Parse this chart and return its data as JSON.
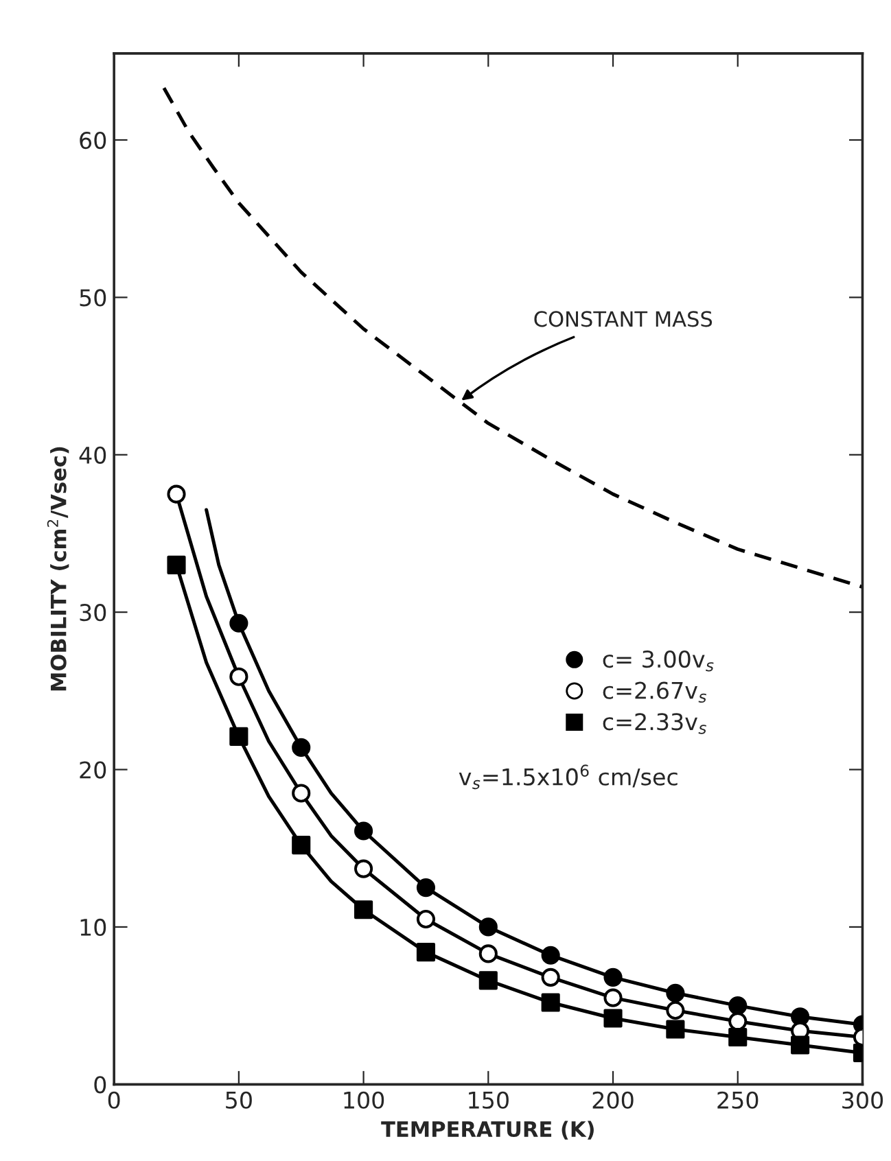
{
  "chart_data": {
    "type": "line",
    "xlabel": "TEMPERATURE (K)",
    "ylabel": "MOBILITY (cm$^{2}$/Vsec)",
    "xlim": [
      0,
      300
    ],
    "ylim": [
      0,
      65.5
    ],
    "xticks": [
      0,
      50,
      100,
      150,
      200,
      250,
      300
    ],
    "yticks": [
      0,
      10,
      20,
      30,
      40,
      50,
      60
    ],
    "grid": false,
    "legend": "right",
    "series": [
      {
        "color": "#000000",
        "line_style": "dashed",
        "marker": "none",
        "x": [
          20,
          30,
          40,
          50,
          75,
          100,
          125,
          150,
          175,
          200,
          225,
          250,
          275,
          300
        ],
        "values": [
          63.3,
          60.5,
          58.2,
          56,
          51.6,
          48,
          45,
          42,
          39.7,
          37.5,
          35.7,
          34,
          32.8,
          31.6
        ]
      },
      {
        "color": "#000000",
        "line_style": "solid",
        "marker": "none",
        "x": [
          37,
          42,
          50,
          62,
          75,
          87,
          100,
          125,
          150,
          175,
          200,
          225,
          250,
          275,
          300
        ],
        "values": [
          36.5,
          33,
          29.3,
          25,
          21.4,
          18.5,
          16.1,
          12.5,
          10,
          8.2,
          6.8,
          5.8,
          5,
          4.3,
          3.8
        ]
      },
      {
        "color": "#000000",
        "line_style": "solid",
        "marker": "none",
        "x": [
          25,
          37,
          50,
          62,
          75,
          87,
          100,
          125,
          150,
          175,
          200,
          225,
          250,
          275,
          300
        ],
        "values": [
          37.5,
          31,
          25.9,
          21.8,
          18.5,
          15.8,
          13.7,
          10.5,
          8.3,
          6.8,
          5.5,
          4.7,
          4,
          3.4,
          3
        ]
      },
      {
        "color": "#000000",
        "line_style": "solid",
        "marker": "none",
        "x": [
          25,
          37,
          50,
          62,
          75,
          87,
          100,
          125,
          150,
          175,
          200,
          225,
          250,
          275,
          300
        ],
        "values": [
          33,
          26.8,
          22.1,
          18.3,
          15.2,
          12.9,
          11.1,
          8.4,
          6.6,
          5.2,
          4.2,
          3.5,
          3,
          2.5,
          2
        ]
      },
      {
        "type": "scatter",
        "name": "c= 3.00v$_{s}$",
        "color": "#000000",
        "marker": "circle",
        "x": [
          50,
          75,
          100,
          125,
          150,
          175,
          200,
          225,
          250,
          275,
          300
        ],
        "values": [
          29.3,
          21.4,
          16.1,
          12.5,
          10,
          8.2,
          6.8,
          5.8,
          5,
          4.3,
          3.8
        ]
      },
      {
        "type": "scatter",
        "name": "c=2.67v$_{s}$",
        "color": "#ffffff",
        "marker": "circle",
        "x": [
          25,
          50,
          75,
          100,
          125,
          150,
          175,
          200,
          225,
          250,
          275,
          300
        ],
        "values": [
          37.5,
          25.9,
          18.5,
          13.7,
          10.5,
          8.3,
          6.8,
          5.5,
          4.7,
          4,
          3.4,
          3
        ]
      },
      {
        "type": "scatter",
        "name": "c=2.33v$_{s}$",
        "color": "#000000",
        "marker": "square",
        "x": [
          25,
          50,
          75,
          100,
          125,
          150,
          175,
          200,
          225,
          250,
          275,
          300
        ],
        "values": [
          33,
          22.1,
          15.2,
          11.1,
          8.4,
          6.6,
          5.2,
          4.2,
          3.5,
          3,
          2.5,
          2
        ]
      }
    ],
    "annotations": [
      {
        "text": "CONSTANT MASS",
        "x": 138,
        "y": 43.3
      },
      "v$_{s}$=1.5x10$^{6}$ cm/sec"
    ]
  }
}
